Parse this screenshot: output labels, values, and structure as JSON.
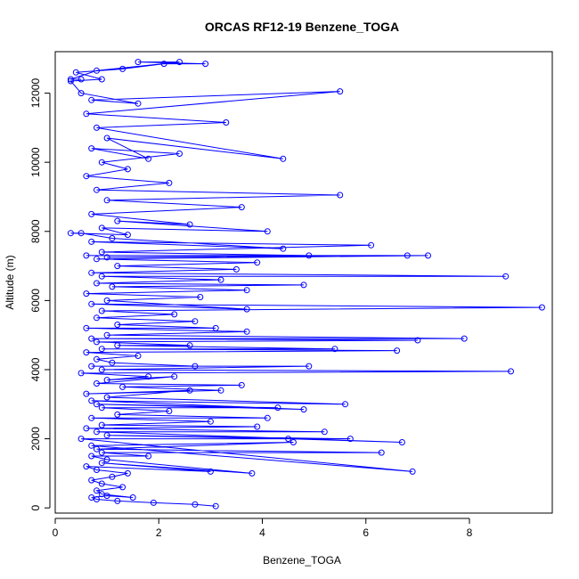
{
  "chart_data": {
    "type": "scatter",
    "title": "ORCAS RF12-19 Benzene_TOGA",
    "xlabel": "Benzene_TOGA",
    "ylabel": "Altitude (m)",
    "xlim": [
      0,
      9.6
    ],
    "ylim": [
      -150,
      13200
    ],
    "x_ticks": [
      0,
      2,
      4,
      6,
      8
    ],
    "y_ticks": [
      0,
      2000,
      4000,
      6000,
      8000,
      10000,
      12000
    ],
    "x_tick_labels": [
      "0",
      "2",
      "4",
      "6",
      "8"
    ],
    "y_tick_labels": [
      "0",
      "2000",
      "4000",
      "6000",
      "8000",
      "10000",
      "12000"
    ],
    "grid": false,
    "legend": "none",
    "colors": {
      "series": "#0000ff",
      "axis": "#000000",
      "background": "#ffffff"
    },
    "series": [
      {
        "style": "line+points",
        "points": [
          [
            3.1,
            50
          ],
          [
            2.7,
            100
          ],
          [
            1.9,
            150
          ],
          [
            1.2,
            200
          ],
          [
            0.8,
            250
          ],
          [
            0.7,
            300
          ],
          [
            1.0,
            350
          ],
          [
            1.5,
            300
          ],
          [
            0.9,
            400
          ],
          [
            0.8,
            500
          ],
          [
            1.3,
            600
          ],
          [
            0.9,
            700
          ],
          [
            0.7,
            800
          ],
          [
            1.1,
            900
          ],
          [
            1.4,
            1000
          ],
          [
            0.8,
            1100
          ],
          [
            0.6,
            1200
          ],
          [
            3.0,
            1050
          ],
          [
            0.9,
            1300
          ],
          [
            3.8,
            1000
          ],
          [
            1.0,
            1400
          ],
          [
            0.7,
            1500
          ],
          [
            1.8,
            1500
          ],
          [
            0.9,
            1600
          ],
          [
            6.3,
            1600
          ],
          [
            0.8,
            1700
          ],
          [
            4.6,
            1900
          ],
          [
            0.7,
            1800
          ],
          [
            6.9,
            1050
          ],
          [
            0.5,
            2000
          ],
          [
            5.7,
            2000
          ],
          [
            1.0,
            2100
          ],
          [
            4.5,
            2000
          ],
          [
            6.7,
            1900
          ],
          [
            0.8,
            2200
          ],
          [
            5.2,
            2200
          ],
          [
            0.6,
            2300
          ],
          [
            3.9,
            2350
          ],
          [
            0.9,
            2400
          ],
          [
            3.0,
            2500
          ],
          [
            0.7,
            2600
          ],
          [
            4.1,
            2600
          ],
          [
            1.2,
            2700
          ],
          [
            2.2,
            2800
          ],
          [
            0.9,
            2900
          ],
          [
            4.3,
            2900
          ],
          [
            0.8,
            3000
          ],
          [
            4.8,
            2850
          ],
          [
            0.7,
            3100
          ],
          [
            5.6,
            3000
          ],
          [
            1.0,
            3200
          ],
          [
            2.6,
            3400
          ],
          [
            0.6,
            3300
          ],
          [
            3.2,
            3400
          ],
          [
            1.3,
            3500
          ],
          [
            3.6,
            3550
          ],
          [
            0.8,
            3600
          ],
          [
            2.3,
            3800
          ],
          [
            1.0,
            3700
          ],
          [
            1.8,
            3800
          ],
          [
            0.5,
            3900
          ],
          [
            8.8,
            3950
          ],
          [
            0.9,
            4000
          ],
          [
            4.9,
            4100
          ],
          [
            0.7,
            4100
          ],
          [
            2.7,
            4100
          ],
          [
            1.1,
            4200
          ],
          [
            0.8,
            4300
          ],
          [
            1.6,
            4400
          ],
          [
            0.6,
            4500
          ],
          [
            6.6,
            4550
          ],
          [
            0.9,
            4600
          ],
          [
            5.4,
            4600
          ],
          [
            1.2,
            4700
          ],
          [
            2.6,
            4700
          ],
          [
            0.8,
            4800
          ],
          [
            7.0,
            4850
          ],
          [
            0.7,
            4900
          ],
          [
            7.9,
            4900
          ],
          [
            1.0,
            5000
          ],
          [
            3.7,
            5100
          ],
          [
            0.6,
            5200
          ],
          [
            3.1,
            5200
          ],
          [
            1.2,
            5300
          ],
          [
            2.7,
            5400
          ],
          [
            0.8,
            5500
          ],
          [
            2.3,
            5600
          ],
          [
            0.9,
            5700
          ],
          [
            9.4,
            5800
          ],
          [
            0.7,
            5900
          ],
          [
            3.7,
            5750
          ],
          [
            1.0,
            6000
          ],
          [
            2.8,
            6100
          ],
          [
            0.6,
            6200
          ],
          [
            3.7,
            6300
          ],
          [
            1.1,
            6400
          ],
          [
            4.8,
            6450
          ],
          [
            0.8,
            6500
          ],
          [
            3.2,
            6600
          ],
          [
            0.9,
            6700
          ],
          [
            8.7,
            6700
          ],
          [
            0.7,
            6800
          ],
          [
            3.5,
            6900
          ],
          [
            1.2,
            7000
          ],
          [
            3.9,
            7100
          ],
          [
            0.8,
            7200
          ],
          [
            7.2,
            7300
          ],
          [
            0.6,
            7300
          ],
          [
            6.8,
            7300
          ],
          [
            1.0,
            7250
          ],
          [
            4.9,
            7300
          ],
          [
            0.9,
            7400
          ],
          [
            6.1,
            7600
          ],
          [
            0.7,
            7700
          ],
          [
            4.4,
            7500
          ],
          [
            1.1,
            7800
          ],
          [
            0.5,
            7950
          ],
          [
            0.3,
            7950
          ],
          [
            1.4,
            7900
          ],
          [
            0.9,
            8100
          ],
          [
            4.1,
            8000
          ],
          [
            1.2,
            8300
          ],
          [
            2.6,
            8200
          ],
          [
            0.7,
            8500
          ],
          [
            3.6,
            8700
          ],
          [
            1.0,
            8900
          ],
          [
            5.5,
            9050
          ],
          [
            0.8,
            9200
          ],
          [
            2.2,
            9400
          ],
          [
            0.6,
            9600
          ],
          [
            1.4,
            9800
          ],
          [
            0.9,
            10000
          ],
          [
            2.4,
            10250
          ],
          [
            0.7,
            10400
          ],
          [
            1.8,
            10100
          ],
          [
            1.0,
            10700
          ],
          [
            4.4,
            10100
          ],
          [
            0.8,
            11000
          ],
          [
            3.3,
            11150
          ],
          [
            0.6,
            11400
          ],
          [
            5.5,
            12050
          ],
          [
            0.7,
            11800
          ],
          [
            1.6,
            11700
          ],
          [
            0.5,
            12000
          ],
          [
            0.3,
            12350
          ],
          [
            0.9,
            12400
          ],
          [
            0.4,
            12600
          ],
          [
            1.3,
            12700
          ],
          [
            2.1,
            12850
          ],
          [
            2.9,
            12850
          ],
          [
            1.6,
            12900
          ],
          [
            2.4,
            12900
          ],
          [
            0.8,
            12650
          ],
          [
            0.3,
            12400
          ],
          [
            0.5,
            12400
          ]
        ]
      }
    ]
  }
}
